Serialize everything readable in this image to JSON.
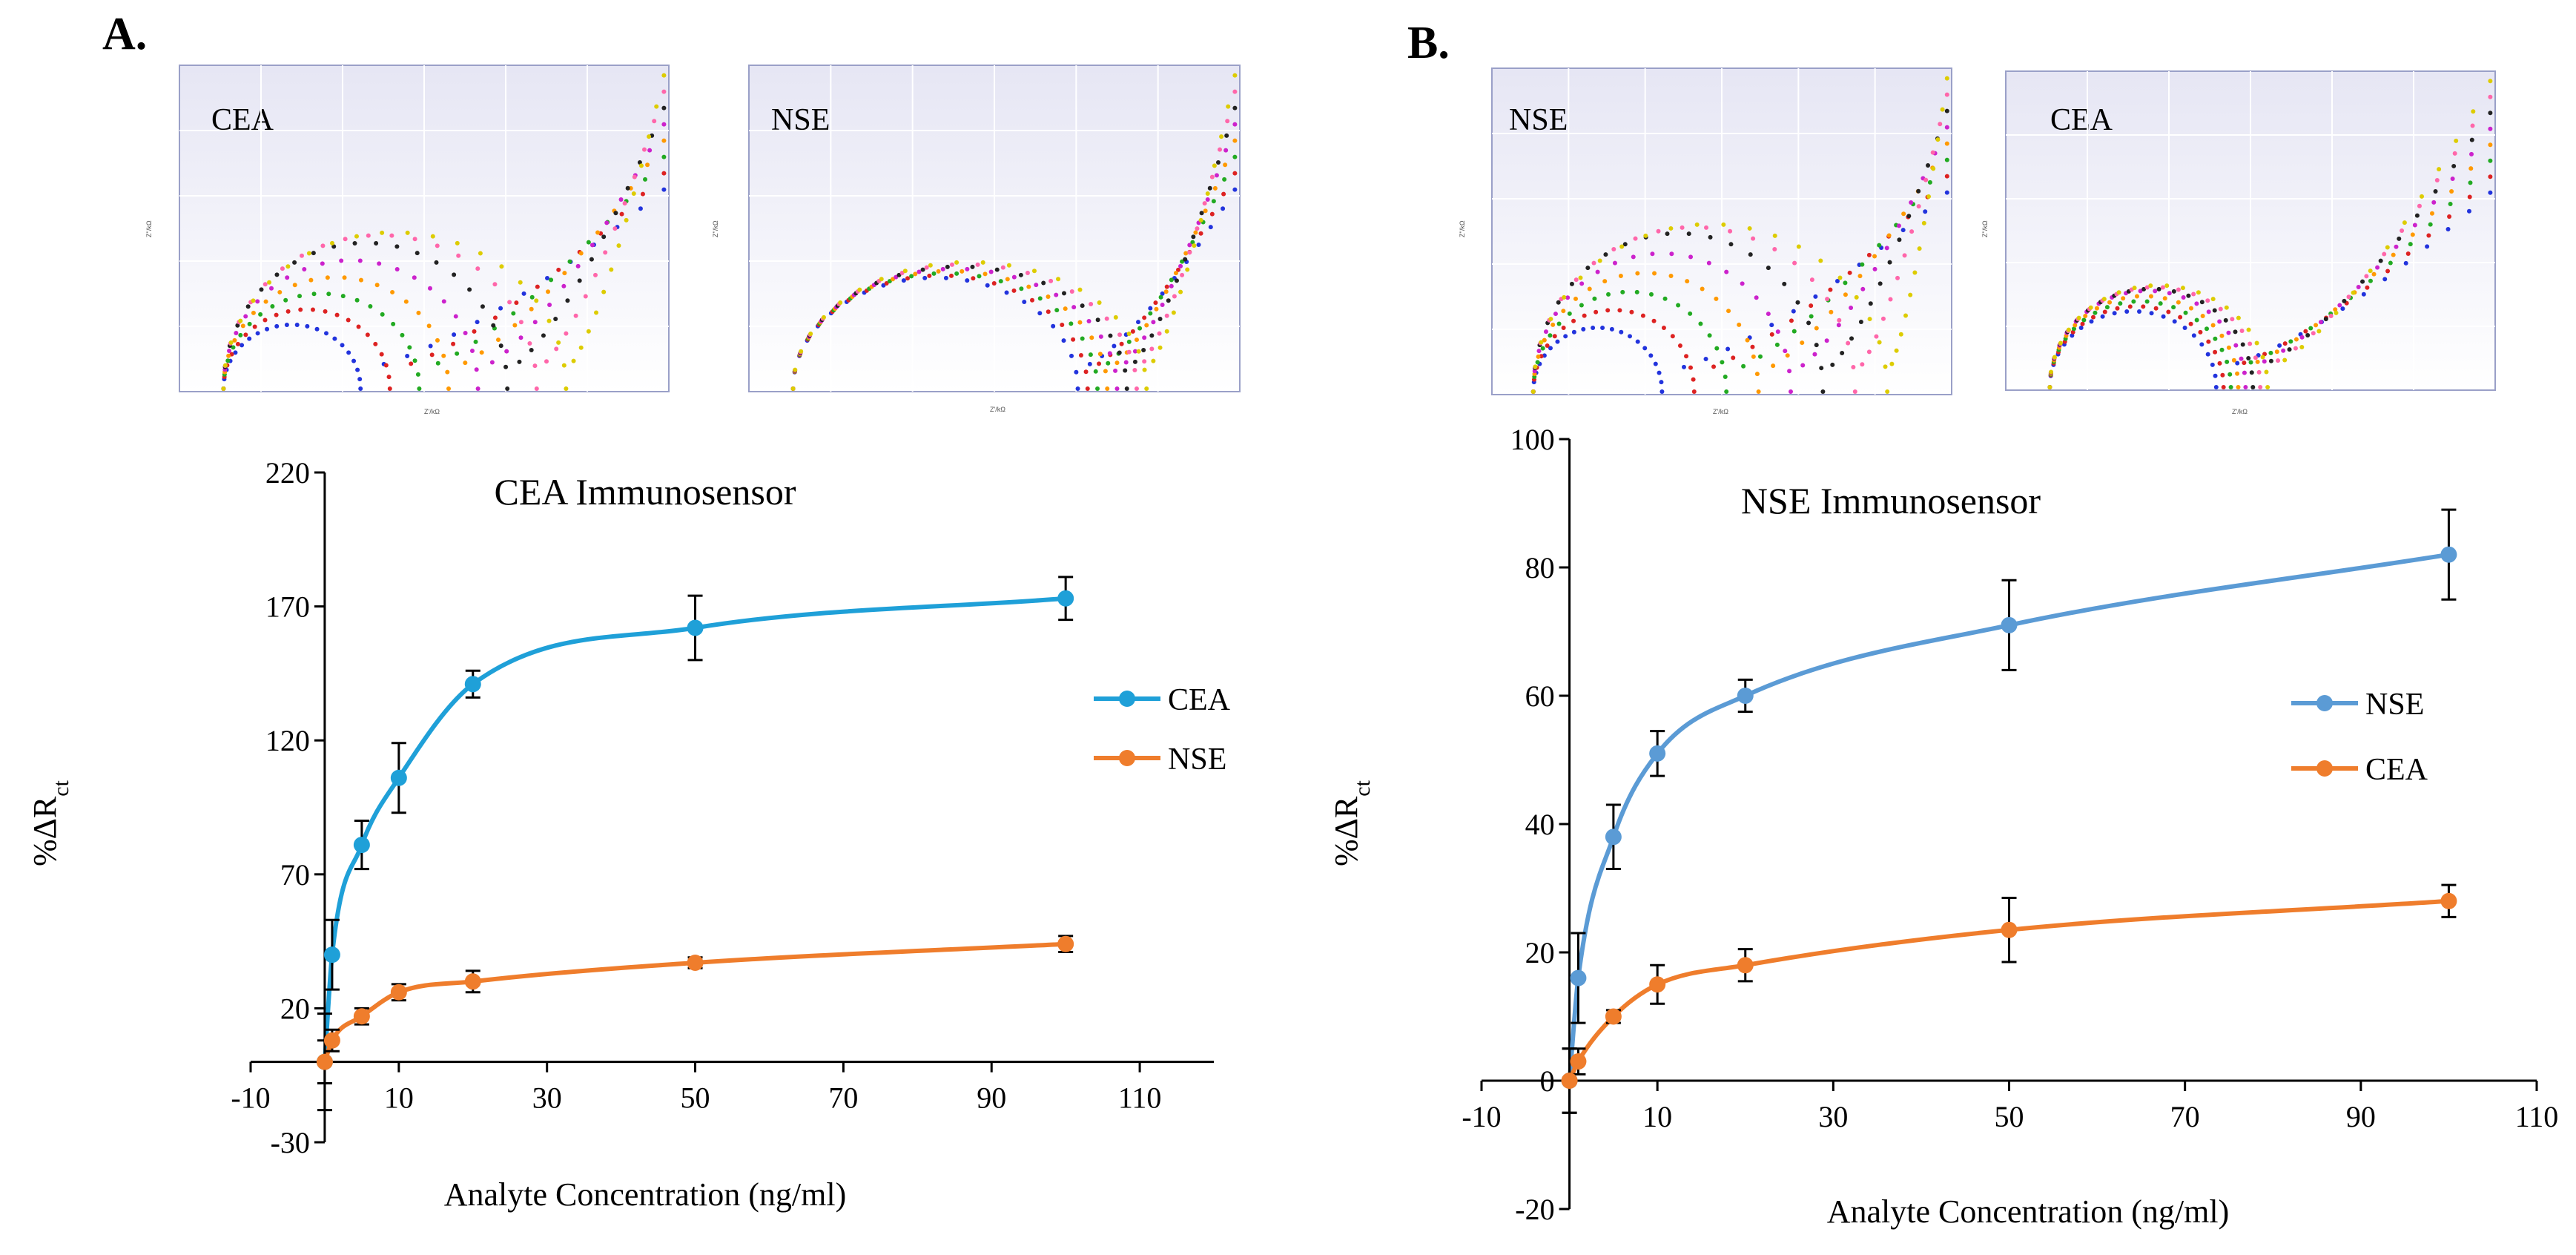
{
  "panels": [
    {
      "id": "A",
      "letter": "A.",
      "insets": [
        {
          "label": "CEA",
          "x_axis_label": "Z'/kΩ",
          "y_axis_label": "Z''/kΩ"
        },
        {
          "label": "NSE",
          "x_axis_label": "Z'/kΩ",
          "y_axis_label": "Z''/kΩ"
        }
      ]
    },
    {
      "id": "B",
      "letter": "B.",
      "insets": [
        {
          "label": "NSE",
          "x_axis_label": "Z'/kΩ",
          "y_axis_label": "Z''/kΩ"
        },
        {
          "label": "CEA",
          "x_axis_label": "Z'/kΩ",
          "y_axis_label": "Z''/kΩ"
        }
      ]
    }
  ],
  "chart_data": [
    {
      "type": "line",
      "title": "CEA Immunosensor",
      "xlabel": "Analyte Concentration (ng/ml)",
      "ylabel_main": "%ΔR",
      "ylabel_sub": "ct",
      "xlim": [
        -10,
        120
      ],
      "ylim": [
        -30,
        220
      ],
      "xticks": [
        -10,
        10,
        30,
        50,
        70,
        90,
        110
      ],
      "yticks": [
        -30,
        20,
        70,
        120,
        170,
        220
      ],
      "legend_position": "right",
      "x": [
        0,
        1,
        5,
        10,
        20,
        50,
        100
      ],
      "series": [
        {
          "name": "CEA",
          "color": "#1fa0d8",
          "values": [
            0,
            40,
            81,
            106,
            141,
            162,
            173
          ],
          "errors": [
            18,
            13,
            9,
            13,
            5,
            12,
            8
          ]
        },
        {
          "name": "NSE",
          "color": "#ef7d2c",
          "values": [
            0,
            8,
            17,
            26,
            30,
            37,
            44
          ],
          "errors": [
            8,
            4,
            3,
            3,
            4,
            2,
            3
          ]
        }
      ]
    },
    {
      "type": "line",
      "title": "NSE Immunosensor",
      "xlabel": "Analyte Concentration (ng/ml)",
      "ylabel_main": "%ΔR",
      "ylabel_sub": "ct",
      "xlim": [
        -10,
        110
      ],
      "ylim": [
        -20,
        100
      ],
      "xticks": [
        -10,
        10,
        30,
        50,
        70,
        90,
        110
      ],
      "yticks": [
        -20,
        0,
        20,
        40,
        60,
        80,
        100
      ],
      "legend_position": "right",
      "x": [
        0,
        1,
        5,
        10,
        20,
        50,
        100
      ],
      "series": [
        {
          "name": "NSE",
          "color": "#5b9bd5",
          "values": [
            0,
            16,
            38,
            51,
            60,
            71,
            82
          ],
          "errors": [
            5,
            7,
            5,
            3.5,
            2.5,
            7,
            7
          ]
        },
        {
          "name": "CEA",
          "color": "#ef7d2c",
          "values": [
            0,
            3,
            10,
            15,
            18,
            23.5,
            28
          ],
          "errors": [
            5,
            2,
            1,
            3,
            2.5,
            5,
            2.5
          ]
        }
      ]
    }
  ]
}
